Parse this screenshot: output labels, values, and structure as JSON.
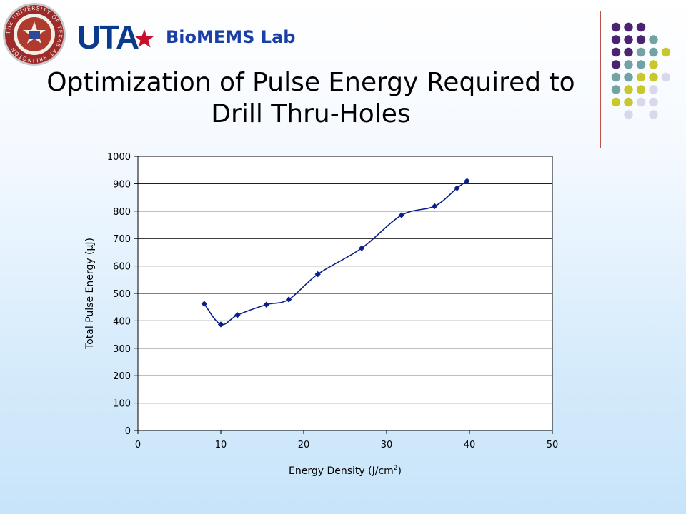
{
  "header": {
    "university_mark": "UTA",
    "lab_name": "BioMEMS Lab",
    "seal_text": "THE UNIVERSITY OF TEXAS AT ARLINGTON"
  },
  "slide": {
    "title_line1": "Optimization of Pulse Energy Required to",
    "title_line2": "Drill Thru-Holes"
  },
  "colors": {
    "series": "#0b1f8a",
    "accent_purple": "#4a2470",
    "accent_teal": "#72a3a4",
    "accent_lime": "#c8c82a",
    "accent_lavender": "#d8d8ea",
    "divider": "#c0504d"
  },
  "chart_data": {
    "type": "line",
    "title": "",
    "xlabel": "Energy Density (J/cm",
    "xlabel_sup": "2",
    "xlabel_end": ")",
    "ylabel": "Total Pulse Energy (µJ)",
    "xlim": [
      0,
      50
    ],
    "ylim": [
      0,
      1000
    ],
    "xticks": [
      0,
      10,
      20,
      30,
      40,
      50
    ],
    "yticks": [
      0,
      100,
      200,
      300,
      400,
      500,
      600,
      700,
      800,
      900,
      1000
    ],
    "grid": "horizontal",
    "legend": "none",
    "series": [
      {
        "x": [
          8.0,
          10.0,
          12.0,
          15.5,
          18.2,
          21.7,
          27.0,
          31.8,
          35.8,
          38.5,
          39.7
        ],
        "y": [
          462,
          387,
          421,
          459,
          478,
          570,
          665,
          785,
          818,
          884,
          910
        ]
      }
    ]
  }
}
